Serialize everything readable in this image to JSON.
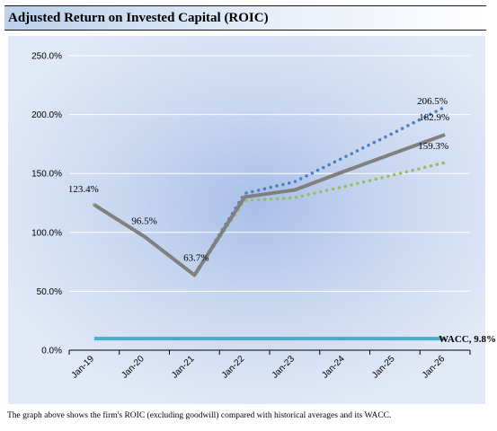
{
  "header": {
    "title": "Adjusted Return on Invested Capital (ROIC)"
  },
  "footnote": "The graph above shows the firm's ROIC (excluding goodwill) compared with historical averages and its WACC.",
  "chart_data": {
    "type": "line",
    "title": "",
    "xlabel": "",
    "ylabel": "",
    "categories": [
      "Jan-19",
      "Jan-20",
      "Jan-21",
      "Jan-22",
      "Jan-23",
      "Jan-24",
      "Jan-25",
      "Jan-26"
    ],
    "ylim": [
      0,
      250
    ],
    "yticks": [
      "0.0%",
      "50.0%",
      "100.0%",
      "150.0%",
      "200.0%",
      "250.0%"
    ],
    "ytick_values": [
      0,
      50,
      100,
      150,
      200,
      250
    ],
    "grid": true,
    "series": [
      {
        "key": "projection-high",
        "values": [
          123.4,
          96.5,
          63.7,
          133.0,
          143.0,
          164.0,
          185.0,
          206.5
        ],
        "color": "#4a7dc0",
        "style": "dotted"
      },
      {
        "key": "projection-low",
        "values": [
          123.4,
          96.5,
          63.7,
          127.0,
          129.5,
          139.0,
          149.0,
          159.3
        ],
        "color": "#9bbb59",
        "style": "dotted"
      },
      {
        "key": "roic",
        "values": [
          123.4,
          96.5,
          63.7,
          130.0,
          136.0,
          152.0,
          167.5,
          182.9
        ],
        "color": "#808080",
        "style": "solid"
      },
      {
        "key": "wacc",
        "name": "WACC",
        "values": [
          9.8,
          9.8,
          9.8,
          9.8,
          9.8,
          9.8,
          9.8,
          9.8
        ],
        "color": "#4bacc6",
        "style": "solid"
      }
    ],
    "data_labels": [
      {
        "text": "123.4%",
        "series": "roic",
        "index": 0
      },
      {
        "text": "96.5%",
        "series": "roic",
        "index": 1
      },
      {
        "text": "63.7%",
        "series": "roic",
        "index": 2
      },
      {
        "text": "206.5%",
        "series": "projection-high",
        "index": 7
      },
      {
        "text": "182.9%",
        "series": "roic",
        "index": 7
      },
      {
        "text": "159.3%",
        "series": "projection-low",
        "index": 7
      },
      {
        "text": "WACC, 9.8%",
        "series": "wacc",
        "index": 7
      }
    ]
  }
}
